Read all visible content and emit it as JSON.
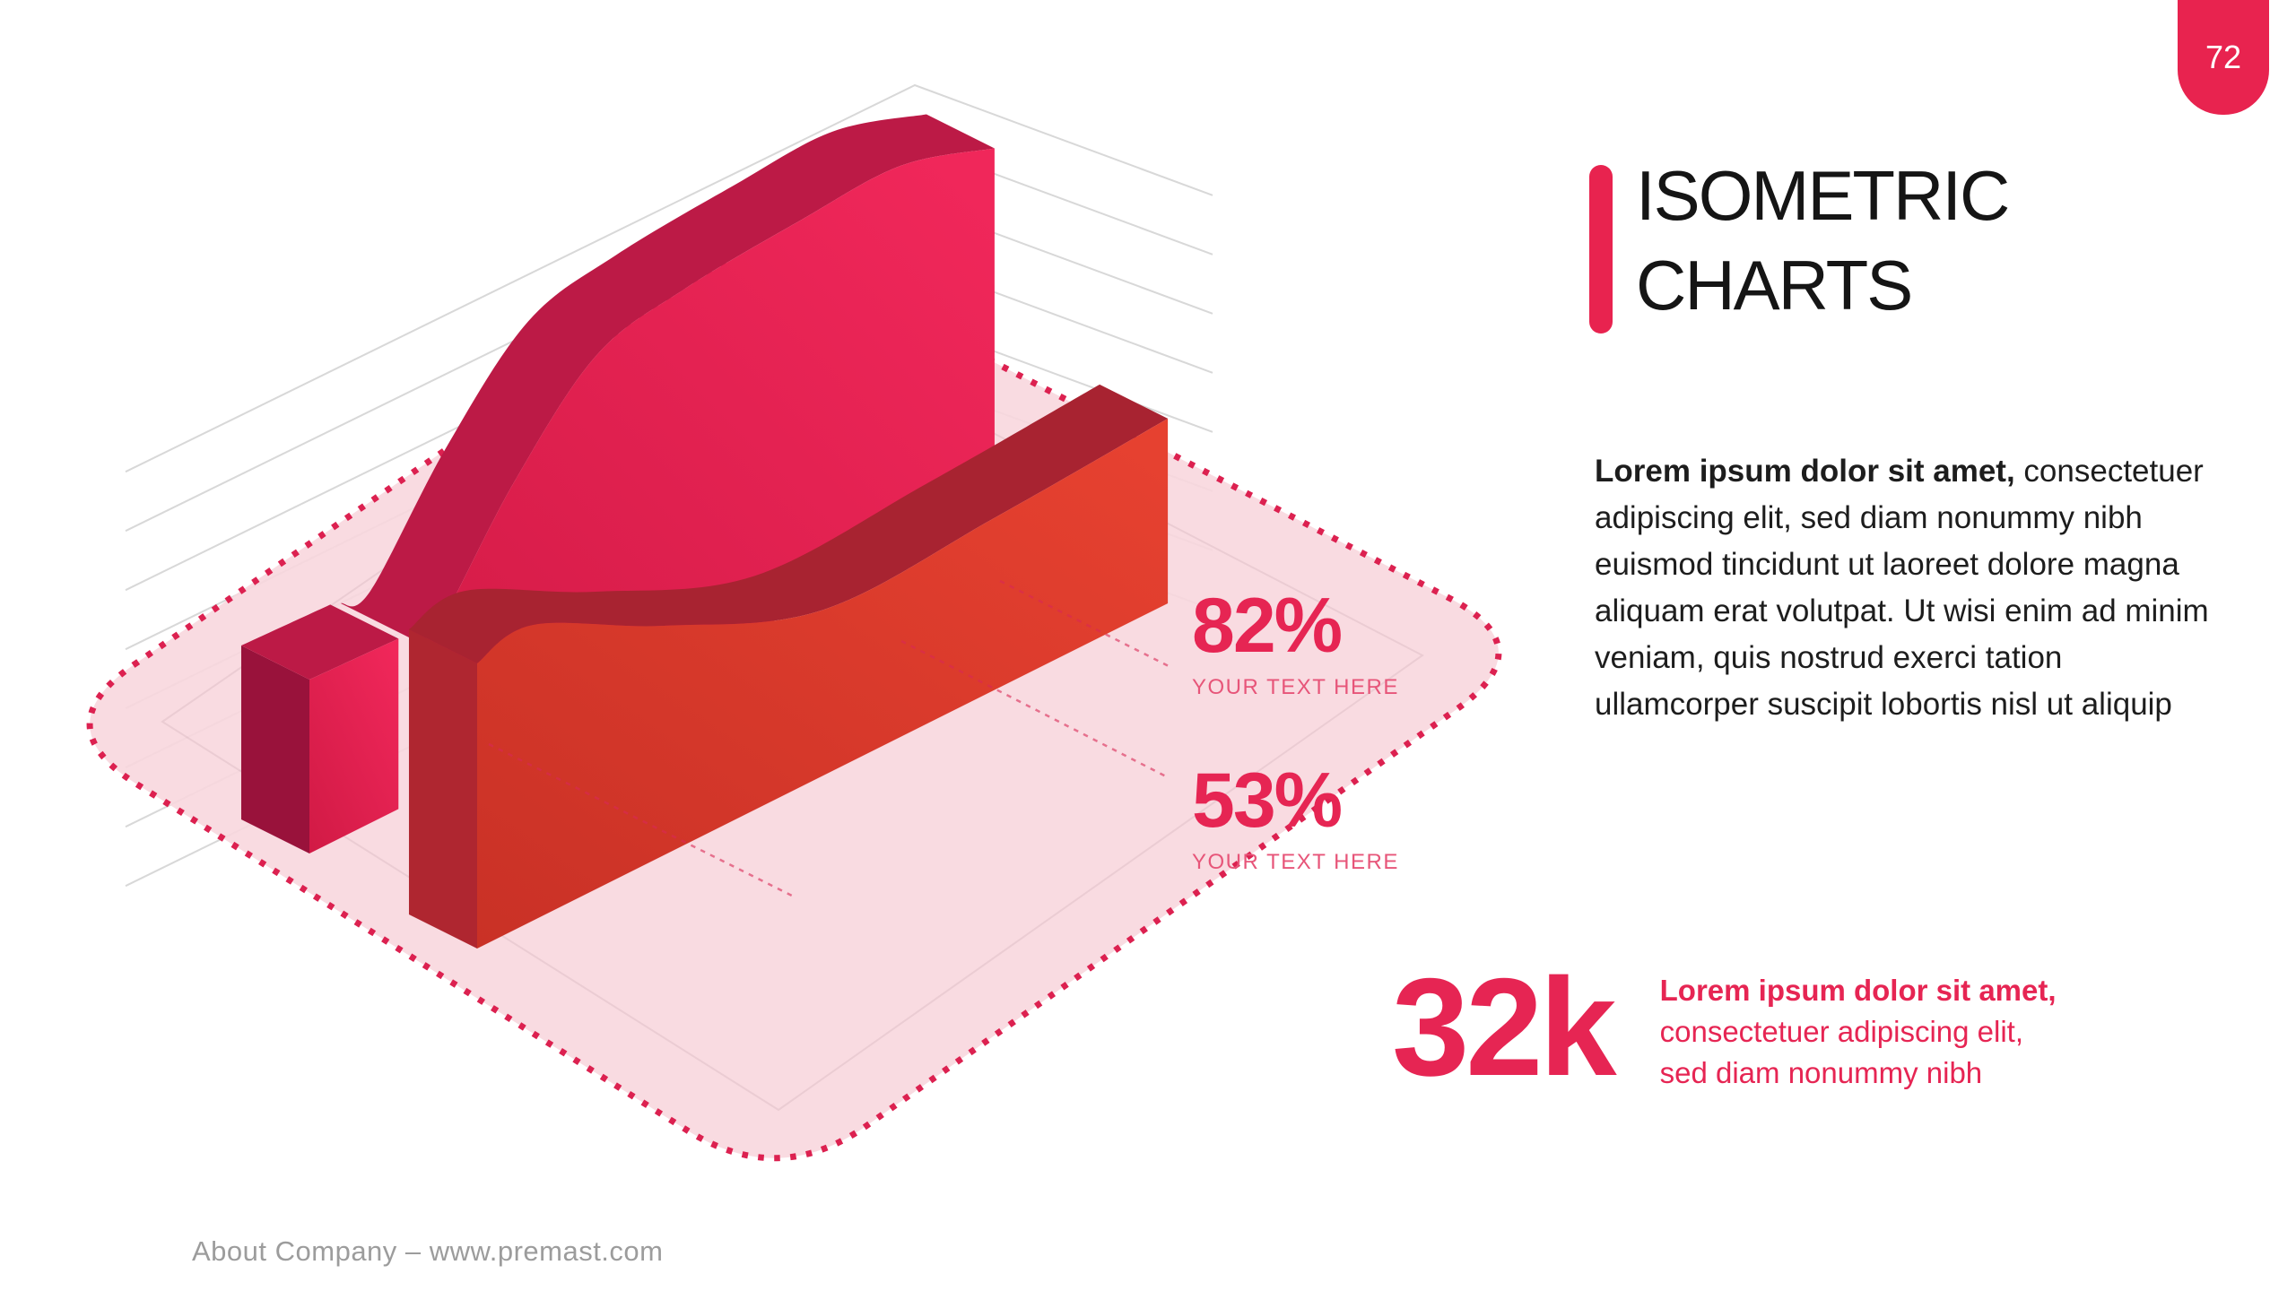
{
  "page": {
    "number": "72"
  },
  "header": {
    "title_line1": "ISOMETRIC",
    "title_line2": "CHARTS"
  },
  "body": {
    "lead": "Lorem ipsum dolor sit amet,",
    "text": " consectetuer adipiscing elit, sed diam nonummy nibh euismod tincidunt ut laoreet dolore magna aliquam erat volutpat. Ut wisi enim ad minim veniam, quis nostrud exerci tation ullamcorper suscipit lobortis nisl ut aliquip"
  },
  "stat": {
    "value": "32k",
    "lead": "Lorem ipsum dolor sit amet,",
    "line1": "consectetuer adipiscing elit,",
    "line2": "sed diam nonummy nibh"
  },
  "footer": {
    "text": "About Company – www.premast.com"
  },
  "colors": {
    "accent": "#E62553",
    "accent_soft": "#E75579",
    "badge_bg": "#E8234F",
    "dot_border": "#DC2150",
    "platform_pink": "#F8D6DD",
    "grid_gray": "#D8D8D8",
    "back_face_dark": "#D11A45",
    "back_face_light": "#F0275A",
    "back_band": "#BC1A46",
    "back_end": "#99123B",
    "front_face_dark": "#C93126",
    "front_face_light": "#E64130",
    "front_band": "#A82331",
    "front_end": "#AF2630",
    "title_color": "#151515",
    "text_color": "#1D1D1D",
    "footer_color": "#9C9C9C"
  },
  "chart_data": {
    "type": "area",
    "style": "isometric-3d-ridge",
    "title": "",
    "grid": true,
    "legend": false,
    "platform": "rounded diamond, dotted crimson border, pink fill",
    "series": [
      {
        "name": "back-area",
        "color": "#E62552",
        "profile": [
          [
            0,
            185
          ],
          [
            0.05,
            182
          ],
          [
            0.18,
            300
          ],
          [
            0.32,
            395
          ],
          [
            0.47,
            420
          ],
          [
            0.67,
            432
          ],
          [
            0.84,
            437
          ],
          [
            1,
            404
          ]
        ],
        "callout": {
          "value": "82%",
          "label": "YOUR TEXT HERE"
        }
      },
      {
        "name": "back-area-left-segment",
        "color": "#E62552",
        "profile": [
          [
            0,
            194
          ],
          [
            1,
            190
          ]
        ],
        "callout": null
      },
      {
        "name": "front-area",
        "color": "#E2402E",
        "profile": [
          [
            0,
            318
          ],
          [
            0.08,
            330
          ],
          [
            0.27,
            256
          ],
          [
            0.5,
            185
          ],
          [
            0.75,
            192
          ],
          [
            1,
            206
          ]
        ],
        "callout": {
          "value": "53%",
          "label": "YOUR TEXT HERE"
        }
      }
    ]
  }
}
